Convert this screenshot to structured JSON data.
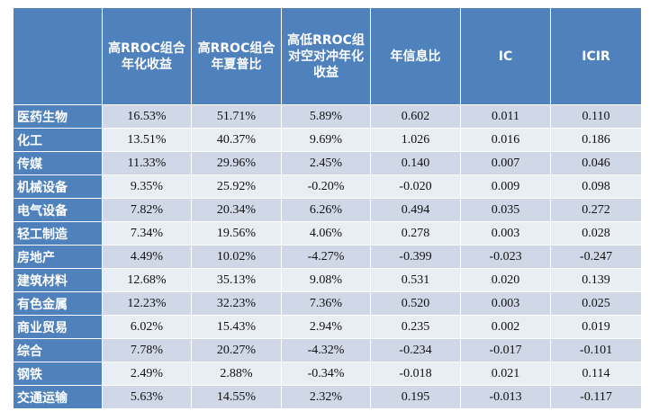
{
  "table": {
    "headers": [
      "",
      "高RROC组合年化收益",
      "高RROC组合年夏普比",
      "高低RROC组对空对冲年化收益",
      "年信息比",
      "IC",
      "ICIR"
    ],
    "rows": [
      {
        "name": "医药生物",
        "cells": [
          "16.53%",
          "51.71%",
          "5.89%",
          "0.602",
          "0.011",
          "0.110"
        ]
      },
      {
        "name": "化工",
        "cells": [
          "13.51%",
          "40.37%",
          "9.69%",
          "1.026",
          "0.016",
          "0.186"
        ]
      },
      {
        "name": "传媒",
        "cells": [
          "11.33%",
          "29.96%",
          "2.45%",
          "0.140",
          "0.007",
          "0.046"
        ]
      },
      {
        "name": "机械设备",
        "cells": [
          "9.35%",
          "25.92%",
          "-0.20%",
          "-0.020",
          "0.009",
          "0.098"
        ]
      },
      {
        "name": "电气设备",
        "cells": [
          "7.82%",
          "20.34%",
          "6.26%",
          "0.494",
          "0.035",
          "0.272"
        ]
      },
      {
        "name": "轻工制造",
        "cells": [
          "7.34%",
          "19.56%",
          "4.06%",
          "0.278",
          "0.003",
          "0.028"
        ]
      },
      {
        "name": "房地产",
        "cells": [
          "4.49%",
          "10.02%",
          "-4.27%",
          "-0.399",
          "-0.023",
          "-0.247"
        ]
      },
      {
        "name": "建筑材料",
        "cells": [
          "12.68%",
          "35.13%",
          "9.08%",
          "0.531",
          "0.020",
          "0.139"
        ]
      },
      {
        "name": "有色金属",
        "cells": [
          "12.23%",
          "32.23%",
          "7.36%",
          "0.520",
          "0.003",
          "0.025"
        ]
      },
      {
        "name": "商业贸易",
        "cells": [
          "6.02%",
          "15.43%",
          "2.94%",
          "0.235",
          "0.002",
          "0.019"
        ]
      },
      {
        "name": "综合",
        "cells": [
          "7.78%",
          "20.27%",
          "-4.32%",
          "-0.234",
          "-0.017",
          "-0.101"
        ]
      },
      {
        "name": "钢铁",
        "cells": [
          "2.49%",
          "2.88%",
          "-0.34%",
          "-0.018",
          "0.021",
          "0.114"
        ]
      },
      {
        "name": "交通运输",
        "cells": [
          "5.63%",
          "14.55%",
          "2.32%",
          "0.195",
          "-0.013",
          "-0.117"
        ]
      }
    ]
  },
  "colors": {
    "header_bg": "#4f81bd",
    "row_odd_bg": "#d0d8e8",
    "row_even_bg": "#e9edf4",
    "header_text": "#ffffff"
  }
}
